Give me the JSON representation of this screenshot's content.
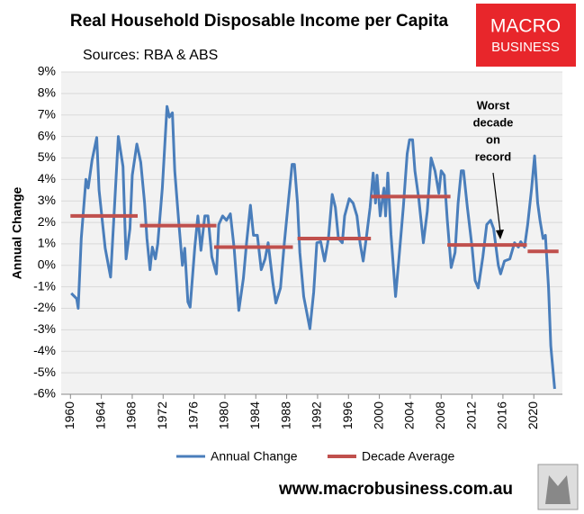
{
  "chart_data": {
    "type": "line",
    "title": "Real Household Disposable Income per Capita",
    "subtitle": "Sources: RBA & ABS",
    "y_label": "Annual Change",
    "annotation": {
      "lines": [
        "Worst",
        "decade",
        "on",
        "record"
      ]
    },
    "logo": {
      "lines": [
        "MACRO",
        "BUSINESS"
      ]
    },
    "website": "www.macrobusiness.com.au",
    "xlim": [
      1958.8,
      2023.7
    ],
    "ylim": [
      -6,
      9
    ],
    "xticks": [
      1960,
      1964,
      1968,
      1972,
      1976,
      1980,
      1984,
      1988,
      1992,
      1996,
      2000,
      2004,
      2008,
      2012,
      2016,
      2020
    ],
    "yticks": [
      {
        "value": -6,
        "label": "-6%"
      },
      {
        "value": -5,
        "label": "-5%"
      },
      {
        "value": -4,
        "label": "-4%"
      },
      {
        "value": -3,
        "label": "-3%"
      },
      {
        "value": -2,
        "label": "-2%"
      },
      {
        "value": -1,
        "label": "-1%"
      },
      {
        "value": 0,
        "label": "0%"
      },
      {
        "value": 1,
        "label": "1%"
      },
      {
        "value": 2,
        "label": "2%"
      },
      {
        "value": 3,
        "label": "3%"
      },
      {
        "value": 4,
        "label": "4%"
      },
      {
        "value": 5,
        "label": "5%"
      },
      {
        "value": 6,
        "label": "6%"
      },
      {
        "value": 7,
        "label": "7%"
      },
      {
        "value": 8,
        "label": "8%"
      },
      {
        "value": 9,
        "label": "9%"
      }
    ],
    "grid": true,
    "legend": "bottom",
    "series": [
      {
        "name": "Annual Change",
        "color": "#4a7ebb",
        "x": [
          1960.1,
          1960.8,
          1961.0,
          1961.4,
          1962.0,
          1962.3,
          1962.8,
          1963.4,
          1963.7,
          1964.5,
          1965.2,
          1965.7,
          1966.2,
          1966.8,
          1967.2,
          1967.7,
          1968.0,
          1968.6,
          1969.1,
          1969.6,
          1969.9,
          1970.3,
          1970.6,
          1971.0,
          1971.3,
          1971.9,
          1972.5,
          1972.8,
          1973.2,
          1973.5,
          1974.0,
          1974.5,
          1974.8,
          1975.2,
          1975.5,
          1976.1,
          1976.5,
          1976.9,
          1977.4,
          1977.8,
          1978.3,
          1978.9,
          1979.2,
          1979.7,
          1980.2,
          1980.7,
          1981.2,
          1981.8,
          1982.4,
          1982.8,
          1983.3,
          1983.7,
          1984.2,
          1984.7,
          1985.2,
          1985.6,
          1986.2,
          1986.6,
          1987.2,
          1987.7,
          1988.2,
          1988.7,
          1989.0,
          1989.4,
          1989.7,
          1990.2,
          1991.0,
          1991.5,
          1991.9,
          1992.4,
          1992.9,
          1993.4,
          1993.9,
          1994.3,
          1994.7,
          1995.2,
          1995.5,
          1996.1,
          1996.6,
          1997.1,
          1997.5,
          1997.9,
          1998.3,
          1998.8,
          1999.2,
          1999.5,
          1999.7,
          2000.1,
          2000.6,
          2000.8,
          2001.1,
          2001.5,
          2002.1,
          2002.5,
          2003.1,
          2003.6,
          2003.9,
          2004.3,
          2004.6,
          2005.1,
          2005.7,
          2006.2,
          2006.7,
          2007.2,
          2007.7,
          2008.0,
          2008.4,
          2008.8,
          2009.3,
          2009.8,
          2010.2,
          2010.6,
          2010.9,
          2011.4,
          2012.0,
          2012.4,
          2012.8,
          2013.4,
          2013.9,
          2014.4,
          2014.8,
          2015.4,
          2015.7,
          2016.2,
          2016.9,
          2017.5,
          2018.0,
          2018.3,
          2018.8,
          2019.2,
          2019.7,
          2020.1,
          2020.5,
          2020.8,
          2021.2,
          2021.5,
          2021.9,
          2022.2,
          2022.7
        ],
        "values": [
          -1.3,
          -1.55,
          -2.0,
          1.25,
          4.0,
          3.6,
          4.9,
          5.95,
          3.5,
          0.8,
          -0.55,
          2.7,
          6.0,
          4.6,
          0.3,
          1.7,
          4.2,
          5.65,
          4.8,
          2.9,
          1.25,
          -0.2,
          0.85,
          0.3,
          1.0,
          3.6,
          7.4,
          6.9,
          7.1,
          4.4,
          2.1,
          0.0,
          0.8,
          -1.7,
          -1.95,
          0.85,
          2.3,
          0.7,
          2.3,
          2.3,
          0.4,
          -0.4,
          1.9,
          2.3,
          2.1,
          2.4,
          0.8,
          -2.1,
          -0.6,
          1.05,
          2.8,
          1.4,
          1.4,
          -0.2,
          0.3,
          1.05,
          -0.8,
          -1.75,
          -1.05,
          1.05,
          2.9,
          4.7,
          4.7,
          2.9,
          0.6,
          -1.45,
          -2.95,
          -1.25,
          1.05,
          1.1,
          0.2,
          1.25,
          3.3,
          2.7,
          1.25,
          1.05,
          2.3,
          3.1,
          2.9,
          2.3,
          1.05,
          0.2,
          1.25,
          2.7,
          4.3,
          2.9,
          4.2,
          2.3,
          3.6,
          2.3,
          4.3,
          1.45,
          -1.45,
          0.2,
          2.7,
          5.2,
          5.85,
          5.85,
          4.4,
          3.1,
          1.05,
          2.5,
          5.0,
          4.4,
          3.35,
          4.4,
          4.2,
          2.1,
          -0.1,
          0.6,
          2.9,
          4.4,
          4.4,
          2.7,
          0.85,
          -0.7,
          -1.05,
          0.4,
          1.9,
          2.1,
          1.7,
          0.0,
          -0.4,
          0.2,
          0.3,
          1.05,
          0.85,
          1.1,
          0.85,
          1.9,
          3.55,
          5.1,
          2.9,
          2.1,
          1.25,
          1.4,
          -1.05,
          -3.75,
          -5.75
        ]
      },
      {
        "name": "Decade Average",
        "color": "#c0504d",
        "x": [
          1960,
          1968.7,
          null,
          1969,
          1978.9,
          null,
          1978.6,
          1988.8,
          null,
          1989.4,
          1998.9,
          null,
          1998.9,
          2009.2,
          null,
          2008.8,
          2019.1,
          null,
          2019.2,
          2023.2
        ],
        "values": [
          2.3,
          2.3,
          null,
          1.85,
          1.85,
          null,
          0.85,
          0.85,
          null,
          1.25,
          1.25,
          null,
          3.2,
          3.2,
          null,
          0.95,
          0.95,
          null,
          0.65,
          0.65
        ]
      }
    ]
  }
}
